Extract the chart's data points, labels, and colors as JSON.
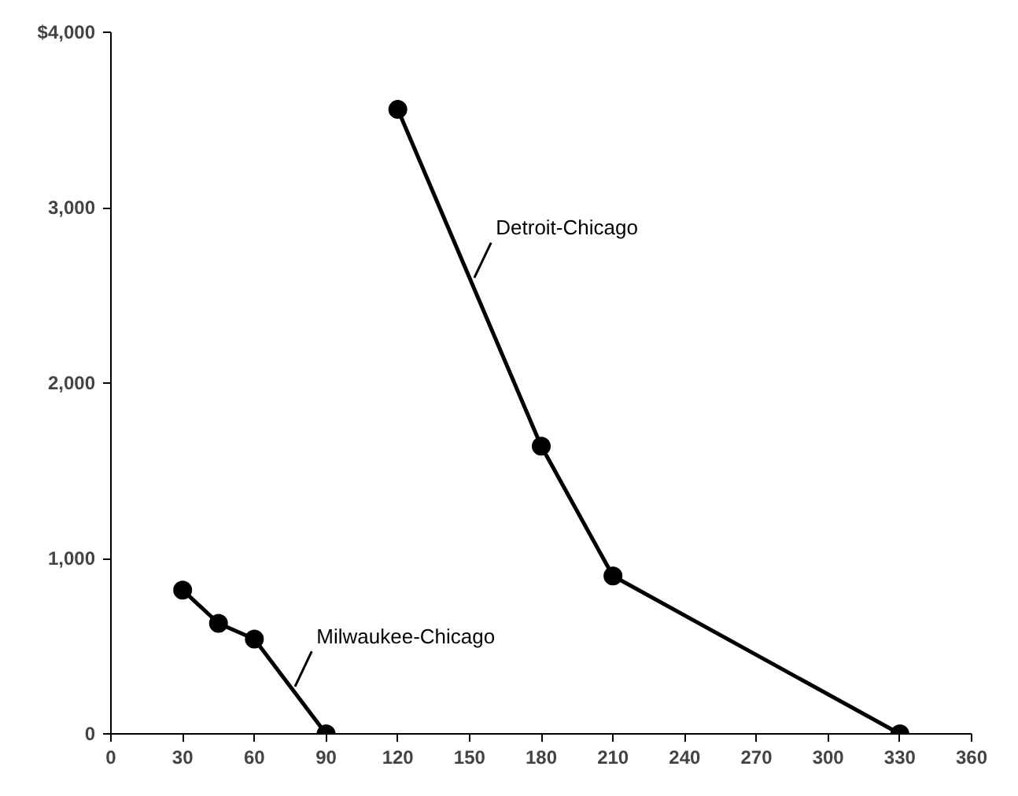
{
  "chart_data": {
    "type": "line",
    "x": [
      30,
      45,
      60,
      90
    ],
    "series": [
      {
        "color": "#000000",
        "values": [
          820,
          630,
          540,
          0
        ]
      },
      {
        "color": "#000000",
        "x": [
          120,
          180,
          210,
          330
        ],
        "values": [
          3560,
          1640,
          900,
          0
        ]
      }
    ],
    "annotations": [
      {
        "text": "Milwaukee-Chicago",
        "x": 75,
        "y": 270
      },
      {
        "text": "Detroit-Chicago",
        "x": 150,
        "y": 2600
      }
    ],
    "xlim": [
      0,
      360
    ],
    "ylim": [
      0,
      4000
    ],
    "xticks": [
      0,
      30,
      60,
      90,
      120,
      150,
      180,
      210,
      240,
      270,
      300,
      330,
      360
    ],
    "yticks": [
      0,
      {
        "value": 1000,
        "label": "1,000"
      },
      {
        "value": 2000,
        "label": "2,000"
      },
      {
        "value": 3000,
        "label": "3,000"
      },
      {
        "value": 4000,
        "label": "$4,000"
      }
    ],
    "grid": false,
    "marker": "circle",
    "line_style": "solid"
  }
}
